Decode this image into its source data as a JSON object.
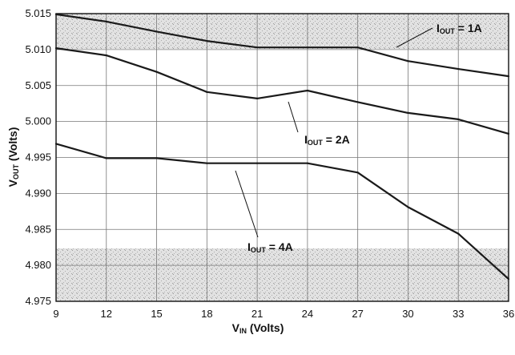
{
  "chart_data": {
    "type": "line",
    "x": [
      9,
      12,
      15,
      18,
      21,
      24,
      27,
      30,
      33,
      36
    ],
    "xlim": [
      9,
      36
    ],
    "ylim": [
      4.975,
      5.015
    ],
    "x_ticks": [
      "9",
      "12",
      "15",
      "18",
      "21",
      "24",
      "27",
      "30",
      "33",
      "36"
    ],
    "y_ticks": [
      "5.015",
      "5.010",
      "5.005",
      "5.000",
      "4.995",
      "4.990",
      "4.985",
      "4.980",
      "4.975"
    ],
    "xlabel": {
      "main": "V",
      "sub": "IN",
      "rest": " (Volts)"
    },
    "ylabel": {
      "main": "V",
      "sub": "OUT",
      "rest": " (Volts)"
    },
    "grid": true,
    "series": [
      {
        "label": {
          "main": "I",
          "sub": "OUT",
          "rest": " = 1A"
        },
        "values": [
          5.0149,
          5.0139,
          5.0125,
          5.0112,
          5.0103,
          5.0103,
          5.0103,
          5.0084,
          5.0073,
          5.0063
        ]
      },
      {
        "label": {
          "main": "I",
          "sub": "OUT",
          "rest": " = 2A"
        },
        "values": [
          5.0102,
          5.0092,
          5.0069,
          5.0041,
          5.0032,
          5.0043,
          5.0027,
          5.0012,
          5.0003,
          4.9983
        ]
      },
      {
        "label": {
          "main": "I",
          "sub": "OUT",
          "rest": " = 4A"
        },
        "values": [
          4.9969,
          4.9949,
          4.9949,
          4.9942,
          4.9942,
          4.9942,
          4.9929,
          4.9881,
          4.9844,
          4.9781
        ]
      }
    ]
  }
}
